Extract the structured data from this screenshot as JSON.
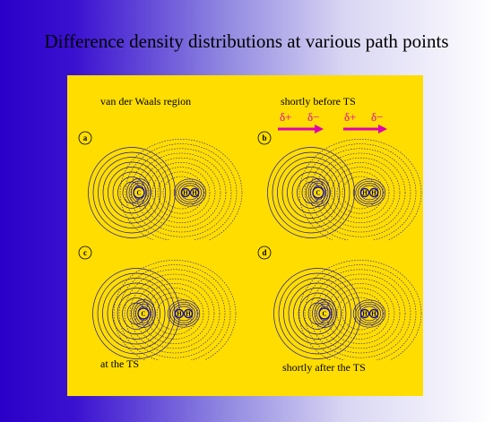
{
  "title": "Difference density distributions at various path points",
  "panels": [
    {
      "letter": "a",
      "caption": "van der Waals region",
      "atoms": [
        "C",
        "H",
        "H"
      ]
    },
    {
      "letter": "b",
      "caption": "shortly before TS",
      "atoms": [
        "C",
        "H",
        "H"
      ]
    },
    {
      "letter": "c",
      "caption": "at the TS",
      "atoms": [
        "C",
        "H",
        "H"
      ]
    },
    {
      "letter": "d",
      "caption": "shortly after the TS",
      "atoms": [
        "C",
        "H",
        "H"
      ]
    }
  ],
  "dipole_labels": {
    "plus": "δ+",
    "minus": "δ−"
  },
  "colors": {
    "background_left": "#2a00c8",
    "panel": "#ffdd00",
    "contour": "#1a10a0",
    "dipole_arrow": "#e000b0"
  }
}
